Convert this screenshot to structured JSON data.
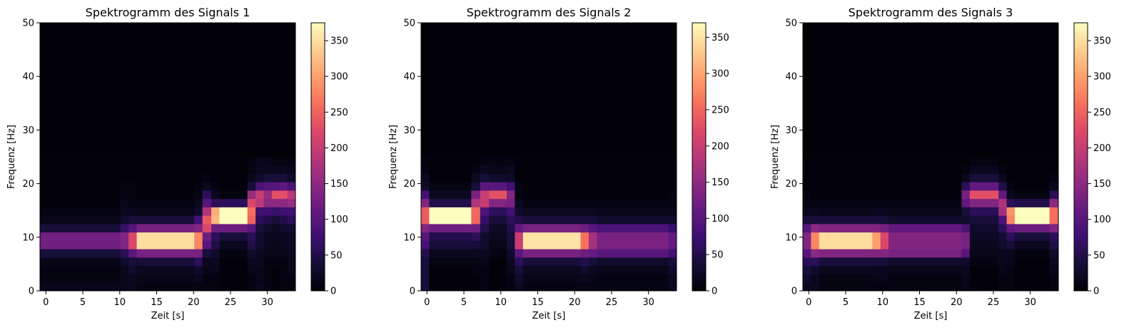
{
  "chart_data": [
    {
      "type": "heatmap",
      "title": "Spektrogramm des Signals 1",
      "xlabel": "Zeit [s]",
      "ylabel": "Frequenz [Hz]",
      "xlim": [
        -0.8,
        33.8
      ],
      "ylim": [
        0,
        50
      ],
      "xticks": [
        0,
        5,
        10,
        15,
        20,
        25,
        30
      ],
      "yticks": [
        0,
        10,
        20,
        30,
        40,
        50
      ],
      "colormap": "magma",
      "colorbar": {
        "min": 0,
        "max": 375,
        "ticks": [
          0,
          50,
          100,
          150,
          200,
          250,
          300,
          350
        ]
      },
      "frequency_band_edges_hz": [
        0,
        1.5625,
        3.125,
        4.6875,
        6.25,
        7.8125,
        9.375,
        10.9375,
        12.5,
        14.0625,
        15.625,
        17.1875,
        18.75,
        20.3125,
        21.875,
        23.4375,
        25
      ],
      "segments": [
        {
          "t0": -0.8,
          "t1": 10.1,
          "bands": [
            15,
            10,
            10,
            15,
            40,
            125,
            125,
            40,
            15,
            10,
            5,
            5,
            5,
            5,
            5,
            5
          ]
        },
        {
          "t0": 10.1,
          "t1": 11.2,
          "bands": [
            15,
            15,
            20,
            30,
            60,
            140,
            140,
            70,
            30,
            20,
            15,
            10,
            10,
            5,
            5,
            5
          ]
        },
        {
          "t0": 11.2,
          "t1": 12.3,
          "bands": [
            20,
            20,
            30,
            40,
            100,
            220,
            220,
            100,
            40,
            20,
            10,
            10,
            10,
            5,
            5,
            5
          ]
        },
        {
          "t0": 12.3,
          "t1": 20.1,
          "bands": [
            10,
            15,
            20,
            40,
            130,
            350,
            350,
            130,
            40,
            15,
            10,
            5,
            5,
            5,
            5,
            5
          ]
        },
        {
          "t0": 20.1,
          "t1": 21.2,
          "bands": [
            10,
            20,
            30,
            60,
            130,
            280,
            280,
            140,
            80,
            30,
            20,
            10,
            10,
            5,
            5,
            5
          ]
        },
        {
          "t0": 21.2,
          "t1": 22.4,
          "bands": [
            10,
            10,
            15,
            20,
            40,
            100,
            120,
            220,
            240,
            180,
            100,
            60,
            20,
            10,
            5,
            5
          ]
        },
        {
          "t0": 22.4,
          "t1": 23.5,
          "bands": [
            10,
            10,
            15,
            20,
            30,
            50,
            60,
            120,
            320,
            310,
            60,
            20,
            10,
            5,
            5,
            5
          ]
        },
        {
          "t0": 23.5,
          "t1": 27.3,
          "bands": [
            5,
            5,
            5,
            5,
            10,
            20,
            40,
            120,
            375,
            375,
            60,
            10,
            5,
            5,
            5,
            5
          ]
        },
        {
          "t0": 27.3,
          "t1": 28.4,
          "bands": [
            10,
            10,
            15,
            20,
            30,
            50,
            60,
            100,
            250,
            260,
            220,
            160,
            40,
            20,
            10,
            10
          ]
        },
        {
          "t0": 28.4,
          "t1": 29.5,
          "bands": [
            20,
            15,
            15,
            20,
            25,
            30,
            30,
            40,
            60,
            80,
            190,
            200,
            90,
            30,
            20,
            15
          ]
        },
        {
          "t0": 29.5,
          "t1": 30.6,
          "bands": [
            10,
            10,
            10,
            10,
            15,
            20,
            20,
            30,
            50,
            80,
            150,
            160,
            100,
            40,
            20,
            15
          ]
        },
        {
          "t0": 30.6,
          "t1": 31.7,
          "bands": [
            5,
            5,
            5,
            10,
            15,
            15,
            20,
            25,
            40,
            70,
            150,
            230,
            100,
            40,
            20,
            10
          ]
        },
        {
          "t0": 31.7,
          "t1": 32.7,
          "bands": [
            10,
            10,
            10,
            10,
            15,
            20,
            20,
            30,
            50,
            80,
            150,
            230,
            110,
            40,
            20,
            10
          ]
        },
        {
          "t0": 32.7,
          "t1": 33.8,
          "bands": [
            10,
            10,
            15,
            15,
            20,
            25,
            25,
            35,
            60,
            80,
            160,
            190,
            90,
            30,
            15,
            10
          ]
        }
      ]
    },
    {
      "type": "heatmap",
      "title": "Spektrogramm des Signals 2",
      "xlabel": "Zeit [s]",
      "ylabel": "Frequenz [Hz]",
      "xlim": [
        -0.8,
        33.8
      ],
      "ylim": [
        0,
        50
      ],
      "xticks": [
        0,
        5,
        10,
        15,
        20,
        25,
        30
      ],
      "yticks": [
        0,
        10,
        20,
        30,
        40,
        50
      ],
      "colormap": "magma",
      "colorbar": {
        "min": 0,
        "max": 370,
        "ticks": [
          0,
          50,
          100,
          150,
          200,
          250,
          300,
          350
        ]
      },
      "frequency_band_edges_hz": [
        0,
        1.5625,
        3.125,
        4.6875,
        6.25,
        7.8125,
        9.375,
        10.9375,
        12.5,
        14.0625,
        15.625,
        17.1875,
        18.75,
        20.3125,
        21.875,
        23.4375,
        25
      ],
      "segments": [
        {
          "t0": -0.8,
          "t1": 0.3,
          "bands": [
            40,
            40,
            40,
            40,
            50,
            80,
            100,
            140,
            240,
            240,
            140,
            80,
            30,
            20,
            10,
            10
          ]
        },
        {
          "t0": 0.3,
          "t1": 6.0,
          "bands": [
            5,
            5,
            5,
            10,
            20,
            40,
            50,
            120,
            370,
            370,
            50,
            20,
            10,
            5,
            5,
            5
          ]
        },
        {
          "t0": 6.0,
          "t1": 7.2,
          "bands": [
            5,
            5,
            10,
            10,
            20,
            40,
            60,
            120,
            250,
            250,
            180,
            130,
            40,
            20,
            10,
            5
          ]
        },
        {
          "t0": 7.2,
          "t1": 8.4,
          "bands": [
            10,
            10,
            10,
            15,
            20,
            30,
            30,
            50,
            70,
            90,
            200,
            200,
            100,
            40,
            20,
            10
          ]
        },
        {
          "t0": 8.4,
          "t1": 10.8,
          "bands": [
            5,
            5,
            5,
            5,
            10,
            15,
            20,
            25,
            40,
            60,
            140,
            230,
            100,
            30,
            15,
            10
          ]
        },
        {
          "t0": 10.8,
          "t1": 11.9,
          "bands": [
            10,
            10,
            15,
            20,
            30,
            40,
            40,
            50,
            60,
            80,
            130,
            140,
            80,
            30,
            20,
            10
          ]
        },
        {
          "t0": 11.9,
          "t1": 13.0,
          "bands": [
            20,
            30,
            40,
            60,
            100,
            200,
            200,
            110,
            50,
            30,
            20,
            10,
            10,
            5,
            5,
            5
          ]
        },
        {
          "t0": 13.0,
          "t1": 20.8,
          "bands": [
            10,
            15,
            20,
            40,
            130,
            350,
            350,
            130,
            40,
            20,
            10,
            5,
            5,
            5,
            5,
            5
          ]
        },
        {
          "t0": 20.8,
          "t1": 21.9,
          "bands": [
            10,
            20,
            30,
            50,
            120,
            260,
            260,
            120,
            40,
            20,
            10,
            5,
            5,
            5,
            5,
            5
          ]
        },
        {
          "t0": 21.9,
          "t1": 23.0,
          "bands": [
            10,
            15,
            20,
            40,
            110,
            170,
            170,
            100,
            40,
            20,
            10,
            5,
            5,
            5,
            5,
            5
          ]
        },
        {
          "t0": 23.0,
          "t1": 32.7,
          "bands": [
            10,
            10,
            15,
            30,
            100,
            130,
            130,
            90,
            30,
            15,
            10,
            5,
            5,
            5,
            5,
            5
          ]
        },
        {
          "t0": 32.7,
          "t1": 33.8,
          "bands": [
            20,
            20,
            30,
            40,
            80,
            110,
            110,
            70,
            30,
            15,
            10,
            10,
            5,
            5,
            5,
            5
          ]
        }
      ]
    },
    {
      "type": "heatmap",
      "title": "Spektrogramm des Signals 3",
      "xlabel": "Zeit [s]",
      "ylabel": "Frequenz [Hz]",
      "xlim": [
        -0.8,
        33.8
      ],
      "ylim": [
        0,
        50
      ],
      "xticks": [
        0,
        5,
        10,
        15,
        20,
        25,
        30
      ],
      "yticks": [
        0,
        10,
        20,
        30,
        40,
        50
      ],
      "colormap": "magma",
      "colorbar": {
        "min": 0,
        "max": 375,
        "ticks": [
          0,
          50,
          100,
          150,
          200,
          250,
          300,
          350
        ]
      },
      "frequency_band_edges_hz": [
        0,
        1.5625,
        3.125,
        4.6875,
        6.25,
        7.8125,
        9.375,
        10.9375,
        12.5,
        14.0625,
        15.625,
        17.1875,
        18.75,
        20.3125,
        21.875,
        23.4375,
        25
      ],
      "segments": [
        {
          "t0": -0.8,
          "t1": 0.3,
          "bands": [
            20,
            30,
            40,
            60,
            100,
            140,
            140,
            100,
            40,
            20,
            10,
            10,
            5,
            5,
            5,
            5
          ]
        },
        {
          "t0": 0.3,
          "t1": 1.4,
          "bands": [
            20,
            20,
            30,
            60,
            150,
            280,
            280,
            150,
            40,
            20,
            10,
            5,
            5,
            5,
            5,
            5
          ]
        },
        {
          "t0": 1.4,
          "t1": 8.6,
          "bands": [
            10,
            10,
            20,
            40,
            140,
            350,
            350,
            140,
            40,
            15,
            10,
            5,
            5,
            5,
            5,
            5
          ]
        },
        {
          "t0": 8.6,
          "t1": 9.7,
          "bands": [
            10,
            15,
            20,
            40,
            140,
            300,
            300,
            140,
            40,
            20,
            10,
            5,
            5,
            5,
            5,
            5
          ]
        },
        {
          "t0": 9.7,
          "t1": 10.8,
          "bands": [
            10,
            15,
            20,
            40,
            140,
            220,
            220,
            130,
            40,
            20,
            10,
            5,
            5,
            5,
            5,
            5
          ]
        },
        {
          "t0": 10.8,
          "t1": 20.7,
          "bands": [
            10,
            10,
            15,
            30,
            130,
            140,
            140,
            110,
            30,
            15,
            10,
            5,
            5,
            5,
            5,
            5
          ]
        },
        {
          "t0": 20.7,
          "t1": 21.8,
          "bands": [
            15,
            15,
            20,
            30,
            100,
            130,
            130,
            90,
            30,
            40,
            110,
            130,
            60,
            20,
            10,
            5
          ]
        },
        {
          "t0": 21.8,
          "t1": 25.7,
          "bands": [
            5,
            5,
            5,
            10,
            15,
            20,
            25,
            30,
            40,
            60,
            140,
            230,
            110,
            40,
            20,
            10
          ]
        },
        {
          "t0": 25.7,
          "t1": 26.8,
          "bands": [
            10,
            10,
            15,
            15,
            20,
            30,
            35,
            60,
            90,
            170,
            180,
            110,
            50,
            20,
            10,
            5
          ]
        },
        {
          "t0": 26.8,
          "t1": 27.9,
          "bands": [
            10,
            10,
            10,
            15,
            20,
            40,
            60,
            110,
            280,
            290,
            60,
            20,
            10,
            5,
            5,
            5
          ]
        },
        {
          "t0": 27.9,
          "t1": 32.6,
          "bands": [
            5,
            5,
            5,
            5,
            10,
            20,
            40,
            120,
            375,
            375,
            50,
            10,
            5,
            5,
            5,
            5
          ]
        },
        {
          "t0": 32.6,
          "t1": 33.8,
          "bands": [
            10,
            10,
            15,
            20,
            30,
            50,
            60,
            140,
            260,
            260,
            150,
            60,
            20,
            10,
            5,
            5
          ]
        }
      ]
    }
  ]
}
